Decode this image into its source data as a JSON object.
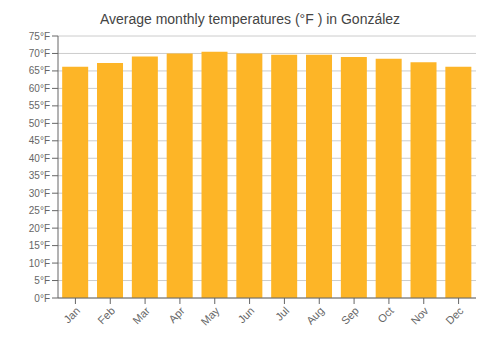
{
  "chart_data": {
    "type": "bar",
    "title": "Average monthly temperatures (°F ) in González",
    "categories": [
      "Jan",
      "Feb",
      "Mar",
      "Apr",
      "May",
      "Jun",
      "Jul",
      "Aug",
      "Sep",
      "Oct",
      "Nov",
      "Dec"
    ],
    "values": [
      66.2,
      67.3,
      69.1,
      70.0,
      70.5,
      70.0,
      69.6,
      69.6,
      69.0,
      68.5,
      67.5,
      66.2
    ],
    "color": "#FDB527",
    "ylim": [
      0,
      75
    ],
    "yticks": [
      {
        "value": 0,
        "label": "0°F"
      },
      {
        "value": 5,
        "label": "5°F"
      },
      {
        "value": 10,
        "label": "10°F"
      },
      {
        "value": 15,
        "label": "15°F"
      },
      {
        "value": 20,
        "label": "20°F"
      },
      {
        "value": 25,
        "label": "25°F"
      },
      {
        "value": 30,
        "label": "30°F"
      },
      {
        "value": 35,
        "label": "35°F"
      },
      {
        "value": 40,
        "label": "40°F"
      },
      {
        "value": 45,
        "label": "45°F"
      },
      {
        "value": 50,
        "label": "50°F"
      },
      {
        "value": 55,
        "label": "55°F"
      },
      {
        "value": 60,
        "label": "60°F"
      },
      {
        "value": 65,
        "label": "65°F"
      },
      {
        "value": 70,
        "label": "70°F"
      },
      {
        "value": 75,
        "label": "75°F"
      }
    ],
    "grid": true
  }
}
